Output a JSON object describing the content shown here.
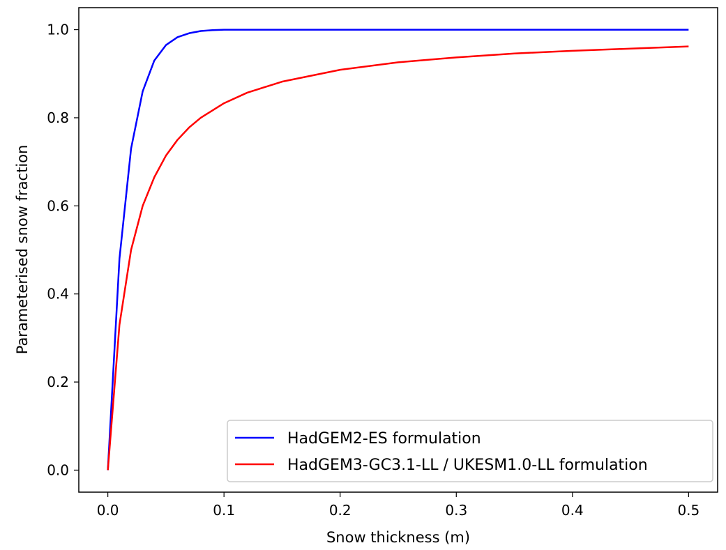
{
  "chart_data": {
    "type": "line",
    "xlabel": "Snow thickness (m)",
    "ylabel": "Parameterised snow fraction",
    "xlim": [
      -0.025,
      0.525
    ],
    "ylim": [
      -0.05,
      1.05
    ],
    "x_ticks": [
      0.0,
      0.1,
      0.2,
      0.3,
      0.4,
      0.5
    ],
    "x_tick_labels": [
      "0.0",
      "0.1",
      "0.2",
      "0.3",
      "0.4",
      "0.5"
    ],
    "y_ticks": [
      0.0,
      0.2,
      0.4,
      0.6,
      0.8,
      1.0
    ],
    "y_tick_labels": [
      "0.0",
      "0.2",
      "0.4",
      "0.6",
      "0.8",
      "1.0"
    ],
    "grid": false,
    "legend_position": "lower-right",
    "series": [
      {
        "name": "HadGEM2-ES formulation",
        "color": "#0000ff",
        "x": [
          0.0,
          0.01,
          0.02,
          0.03,
          0.04,
          0.05,
          0.06,
          0.07,
          0.08,
          0.09,
          0.1,
          0.12,
          0.15,
          0.2,
          0.3,
          0.4,
          0.5
        ],
        "y": [
          0.0,
          0.48,
          0.73,
          0.86,
          0.93,
          0.965,
          0.983,
          0.992,
          0.997,
          0.999,
          1.0,
          1.0,
          1.0,
          1.0,
          1.0,
          1.0,
          1.0
        ]
      },
      {
        "name": "HadGEM3-GC3.1-LL / UKESM1.0-LL formulation",
        "color": "#ff0000",
        "x": [
          0.0,
          0.01,
          0.02,
          0.03,
          0.04,
          0.05,
          0.06,
          0.07,
          0.08,
          0.1,
          0.12,
          0.15,
          0.2,
          0.25,
          0.3,
          0.35,
          0.4,
          0.45,
          0.5
        ],
        "y": [
          0.0,
          0.33,
          0.5,
          0.6,
          0.665,
          0.714,
          0.75,
          0.778,
          0.8,
          0.833,
          0.857,
          0.882,
          0.909,
          0.926,
          0.937,
          0.946,
          0.952,
          0.957,
          0.962
        ]
      }
    ]
  }
}
